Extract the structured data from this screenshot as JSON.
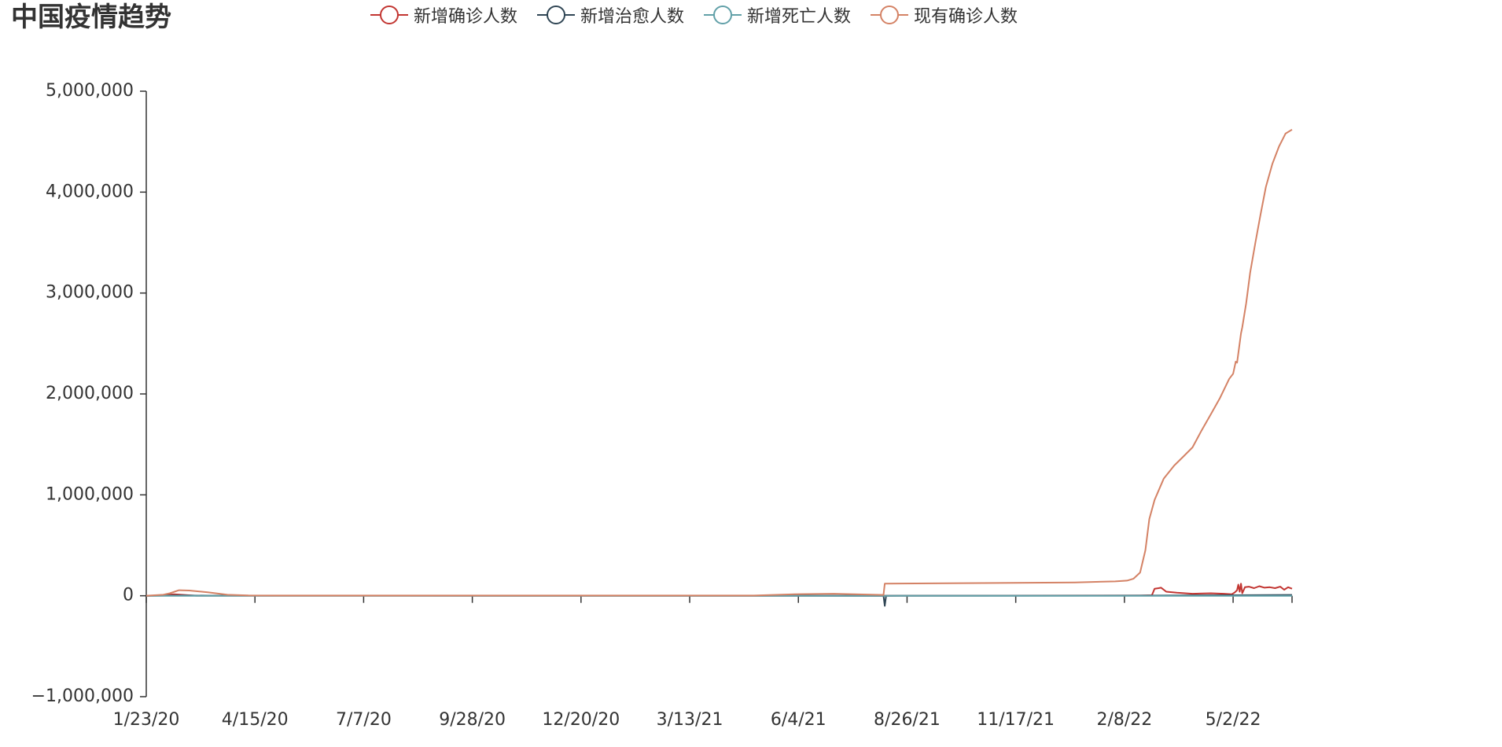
{
  "chart_data": {
    "type": "line",
    "title": "中国疫情趋势",
    "xlabel": "",
    "ylabel": "",
    "ylim": [
      -1000000,
      5000000
    ],
    "yticks": [
      -1000000,
      0,
      1000000,
      2000000,
      3000000,
      4000000,
      5000000
    ],
    "ytick_labels": [
      "−1,000,000",
      "0",
      "1,000,000",
      "2,000,000",
      "3,000,000",
      "4,000,000",
      "5,000,000"
    ],
    "xlim": [
      "2020-01-23",
      "2022-06-16"
    ],
    "xticks": [
      "2020-01-23",
      "2020-04-15",
      "2020-07-07",
      "2020-09-28",
      "2020-12-20",
      "2021-03-13",
      "2021-06-04",
      "2021-08-26",
      "2021-11-17",
      "2022-02-08",
      "2022-05-02"
    ],
    "xtick_labels": [
      "1/23/20",
      "4/15/20",
      "7/7/20",
      "9/28/20",
      "12/20/20",
      "3/13/21",
      "6/4/21",
      "8/26/21",
      "11/17/21",
      "2/8/22",
      "5/2/22"
    ],
    "grid": false,
    "legend_position": "top",
    "series": [
      {
        "name": "新增确诊人数",
        "color": "#c23531",
        "x": [
          "2020-01-23",
          "2020-02-05",
          "2020-02-13",
          "2020-03-01",
          "2021-08-01",
          "2022-02-20",
          "2022-03-01",
          "2022-03-03",
          "2022-03-06",
          "2022-03-08",
          "2022-03-12",
          "2022-03-20",
          "2022-04-01",
          "2022-04-15",
          "2022-04-25",
          "2022-05-01",
          "2022-05-03",
          "2022-05-05",
          "2022-05-06",
          "2022-05-07",
          "2022-05-08",
          "2022-05-09",
          "2022-05-11",
          "2022-05-14",
          "2022-05-18",
          "2022-05-22",
          "2022-05-26",
          "2022-05-30",
          "2022-06-03",
          "2022-06-07",
          "2022-06-10",
          "2022-06-13",
          "2022-06-16"
        ],
        "y": [
          500,
          3000,
          15000,
          500,
          200,
          2000,
          5000,
          70000,
          75000,
          80000,
          40000,
          30000,
          20000,
          25000,
          20000,
          15000,
          30000,
          55000,
          110000,
          40000,
          120000,
          25000,
          85000,
          90000,
          75000,
          95000,
          80000,
          85000,
          75000,
          90000,
          60000,
          85000,
          70000
        ]
      },
      {
        "name": "新增治愈人数",
        "color": "#2f4554",
        "x": [
          "2020-01-23",
          "2020-02-20",
          "2020-03-10",
          "2021-08-08",
          "2021-08-09",
          "2021-08-10",
          "2022-03-01",
          "2022-05-01",
          "2022-06-16"
        ],
        "y": [
          0,
          3000,
          1500,
          0,
          -100000,
          0,
          2000,
          5000,
          8000
        ]
      },
      {
        "name": "新增死亡人数",
        "color": "#61a0a8",
        "x": [
          "2020-01-23",
          "2021-08-08",
          "2022-06-16"
        ],
        "y": [
          0,
          0,
          0
        ]
      },
      {
        "name": "现有确诊人数",
        "color": "#d48265",
        "x": [
          "2020-01-23",
          "2020-02-05",
          "2020-02-10",
          "2020-02-17",
          "2020-02-25",
          "2020-03-10",
          "2020-03-25",
          "2020-04-10",
          "2020-05-01",
          "2021-05-01",
          "2021-06-01",
          "2021-07-01",
          "2021-08-08",
          "2021-08-09",
          "2022-01-01",
          "2022-02-01",
          "2022-02-10",
          "2022-02-15",
          "2022-02-20",
          "2022-02-24",
          "2022-02-27",
          "2022-03-03",
          "2022-03-10",
          "2022-03-18",
          "2022-03-25",
          "2022-04-01",
          "2022-04-08",
          "2022-04-15",
          "2022-04-22",
          "2022-04-29",
          "2022-05-02",
          "2022-05-04",
          "2022-05-05",
          "2022-05-08",
          "2022-05-09",
          "2022-05-12",
          "2022-05-15",
          "2022-05-19",
          "2022-05-23",
          "2022-05-27",
          "2022-06-01",
          "2022-06-06",
          "2022-06-11",
          "2022-06-16"
        ],
        "y": [
          500,
          10000,
          25000,
          55000,
          52000,
          35000,
          10000,
          3000,
          2000,
          2000,
          15000,
          20000,
          8000,
          120000,
          132000,
          142000,
          150000,
          170000,
          230000,
          450000,
          760000,
          950000,
          1160000,
          1290000,
          1380000,
          1470000,
          1640000,
          1800000,
          1960000,
          2150000,
          2200000,
          2320000,
          2310000,
          2600000,
          2660000,
          2900000,
          3200000,
          3500000,
          3780000,
          4050000,
          4280000,
          4450000,
          4580000,
          4620000
        ]
      }
    ]
  }
}
